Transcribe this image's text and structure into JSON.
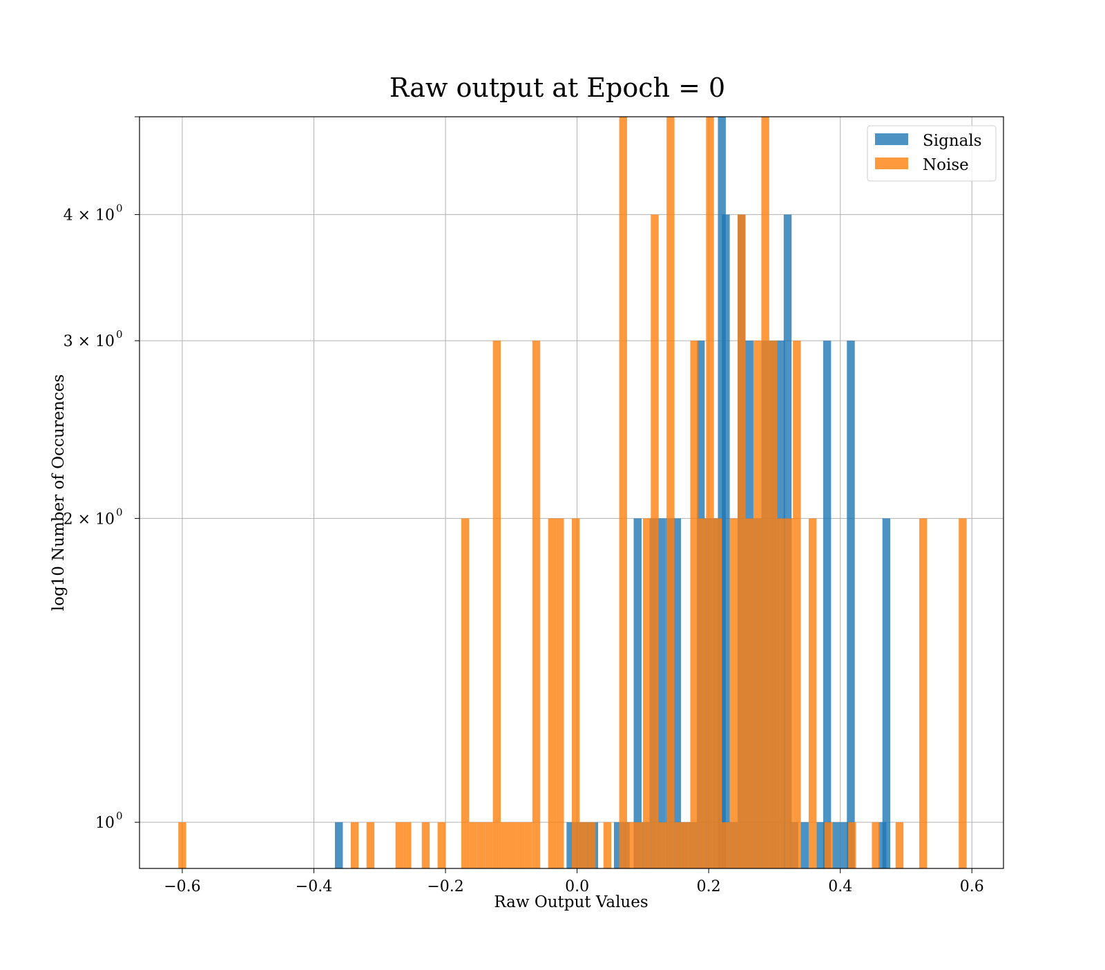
{
  "chart_data": {
    "type": "bar",
    "title": "Raw output at Epoch = 0",
    "xlabel": "Raw Output Values",
    "ylabel": "log10 Number of Occurences",
    "xlim": [
      -0.665,
      0.648
    ],
    "ylim": [
      0.9,
      5.0
    ],
    "yscale": "log",
    "grid": true,
    "legend_position": "top-right",
    "x_ticks": [
      {
        "value": -0.6,
        "label": "−0.6"
      },
      {
        "value": -0.4,
        "label": "−0.4"
      },
      {
        "value": -0.2,
        "label": "−0.2"
      },
      {
        "value": 0.0,
        "label": "0.0"
      },
      {
        "value": 0.2,
        "label": "0.2"
      },
      {
        "value": 0.4,
        "label": "0.4"
      },
      {
        "value": 0.6,
        "label": "0.6"
      }
    ],
    "y_ticks": [
      {
        "value": 1,
        "base": "10",
        "exp": "0"
      },
      {
        "value": 2,
        "base": "2 × 10",
        "exp": "0"
      },
      {
        "value": 3,
        "base": "3 × 10",
        "exp": "0"
      },
      {
        "value": 4,
        "base": "4 × 10",
        "exp": "0"
      },
      {
        "value": 5,
        "base": "",
        "exp": ""
      }
    ],
    "bin_width": 0.012,
    "series": [
      {
        "name": "Signals",
        "color": "#1f77b4",
        "opacity": 0.8,
        "bars": [
          [
            -0.362,
            1
          ],
          [
            -0.01,
            1
          ],
          [
            0.002,
            1
          ],
          [
            0.014,
            1
          ],
          [
            0.026,
            1
          ],
          [
            0.062,
            1
          ],
          [
            0.074,
            1
          ],
          [
            0.092,
            2
          ],
          [
            0.104,
            1
          ],
          [
            0.116,
            2
          ],
          [
            0.128,
            2
          ],
          [
            0.14,
            2
          ],
          [
            0.152,
            2
          ],
          [
            0.164,
            1
          ],
          [
            0.176,
            1
          ],
          [
            0.188,
            3
          ],
          [
            0.2,
            2
          ],
          [
            0.212,
            2
          ],
          [
            0.22,
            5
          ],
          [
            0.226,
            4
          ],
          [
            0.238,
            1
          ],
          [
            0.25,
            4
          ],
          [
            0.262,
            3
          ],
          [
            0.274,
            2
          ],
          [
            0.286,
            3
          ],
          [
            0.298,
            3
          ],
          [
            0.31,
            3
          ],
          [
            0.32,
            4
          ],
          [
            0.33,
            1
          ],
          [
            0.346,
            1
          ],
          [
            0.37,
            1
          ],
          [
            0.38,
            3
          ],
          [
            0.394,
            1
          ],
          [
            0.406,
            1
          ],
          [
            0.416,
            3
          ],
          [
            0.47,
            2
          ],
          [
            0.464,
            1
          ]
        ]
      },
      {
        "name": "Noise",
        "color": "#ff7f0e",
        "opacity": 0.8,
        "bars": [
          [
            -0.6,
            1
          ],
          [
            -0.338,
            1
          ],
          [
            -0.314,
            1
          ],
          [
            -0.27,
            1
          ],
          [
            -0.258,
            1
          ],
          [
            -0.23,
            1
          ],
          [
            -0.206,
            1
          ],
          [
            -0.17,
            2
          ],
          [
            -0.158,
            1
          ],
          [
            -0.146,
            1
          ],
          [
            -0.134,
            1
          ],
          [
            -0.122,
            3
          ],
          [
            -0.11,
            1
          ],
          [
            -0.098,
            1
          ],
          [
            -0.086,
            1
          ],
          [
            -0.074,
            1
          ],
          [
            -0.062,
            3
          ],
          [
            -0.038,
            2
          ],
          [
            -0.026,
            2
          ],
          [
            -0.002,
            2
          ],
          [
            0.01,
            1
          ],
          [
            0.022,
            1
          ],
          [
            0.046,
            1
          ],
          [
            0.07,
            5
          ],
          [
            0.082,
            1
          ],
          [
            0.094,
            1
          ],
          [
            0.106,
            2
          ],
          [
            0.118,
            4
          ],
          [
            0.13,
            1
          ],
          [
            0.142,
            5
          ],
          [
            0.154,
            1
          ],
          [
            0.166,
            1
          ],
          [
            0.178,
            3
          ],
          [
            0.19,
            2
          ],
          [
            0.202,
            5
          ],
          [
            0.214,
            2
          ],
          [
            0.226,
            1
          ],
          [
            0.238,
            2
          ],
          [
            0.25,
            4
          ],
          [
            0.262,
            2
          ],
          [
            0.274,
            3
          ],
          [
            0.286,
            5
          ],
          [
            0.298,
            3
          ],
          [
            0.31,
            2
          ],
          [
            0.322,
            2
          ],
          [
            0.334,
            3
          ],
          [
            0.358,
            2
          ],
          [
            0.382,
            1
          ],
          [
            0.418,
            1
          ],
          [
            0.454,
            1
          ],
          [
            0.49,
            1
          ],
          [
            0.526,
            2
          ],
          [
            0.586,
            2
          ]
        ]
      }
    ]
  }
}
